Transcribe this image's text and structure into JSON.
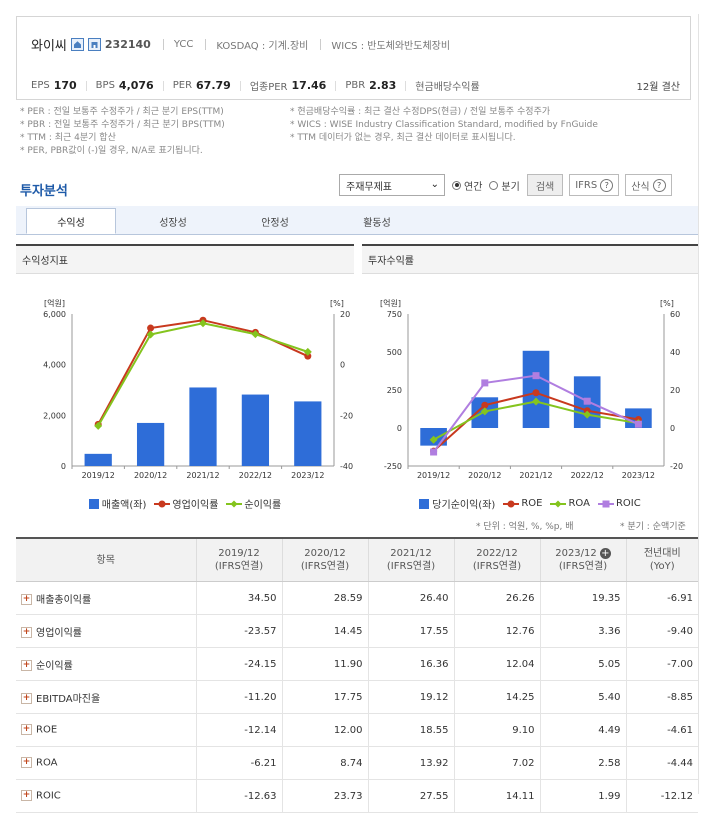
{
  "company": {
    "name": "와이씨",
    "code": "232140",
    "eng_name": "YCC",
    "market": "KOSDAQ : 기계.장비",
    "wics": "WICS : 반도체와반도체장비"
  },
  "metrics": [
    {
      "key": "EPS",
      "value": "170"
    },
    {
      "key": "BPS",
      "value": "4,076"
    },
    {
      "key": "PER",
      "value": "67.79"
    },
    {
      "key": "업종PER",
      "value": "17.46"
    },
    {
      "key": "PBR",
      "value": "2.83"
    },
    {
      "key": "현금배당수익률",
      "value": ""
    }
  ],
  "settlement": "12월 결산",
  "notes": {
    "left": [
      "* PER : 전일 보통주 수정주가 / 최근 분기 EPS(TTM)",
      "* PBR : 전일 보통주 수정주가 / 최근 분기 BPS(TTM)",
      "* TTM : 최근 4분기 합산",
      "* PER, PBR값이 (-)일 경우, N/A로 표기됩니다."
    ],
    "right": [
      "* 현금배당수익률 : 최근 결산 수정DPS(현금) / 전일 보통주 수정주가",
      "* WICS : WISE Industry Classification Standard, modified by FnGuide",
      "* TTM 데이터가 없는 경우, 최근 결산 데이터로 표시됩니다."
    ]
  },
  "section_title": "투자분석",
  "controls": {
    "select_value": "주재무제표",
    "radio_annual": "연간",
    "radio_quarter": "분기",
    "search_button": "검색",
    "ifrs_button": "IFRS",
    "formula_button": "산식"
  },
  "tabs": [
    "수익성",
    "성장성",
    "안정성",
    "활동성"
  ],
  "panels": {
    "left_title": "수익성지표",
    "right_title": "투자수익률"
  },
  "colors": {
    "bar": "#2e6dd8",
    "op_margin": "#c8391e",
    "net_margin": "#84c41e",
    "roic": "#b07ee0",
    "negative": "#d61f1f",
    "accent_title": "#1e5aa8"
  },
  "chart_data": [
    {
      "type": "bar",
      "categories": [
        "2019/12",
        "2020/12",
        "2021/12",
        "2022/12",
        "2023/12"
      ],
      "y_left_unit": "[억원]",
      "y_right_unit": "[%]",
      "ylim_left": [
        0,
        6000
      ],
      "yticks_left": [
        "0",
        "2,000",
        "4,000",
        "6,000"
      ],
      "ylim_right": [
        -40,
        20
      ],
      "yticks_right": [
        "-40",
        "-20",
        "0",
        "20"
      ],
      "series": [
        {
          "name": "매출액(좌)",
          "type": "bar",
          "axis": "left",
          "values": [
            480,
            1700,
            3100,
            2820,
            2550
          ]
        },
        {
          "name": "영업이익률",
          "type": "line",
          "axis": "right",
          "values": [
            -23.57,
            14.45,
            17.55,
            12.76,
            3.36
          ]
        },
        {
          "name": "순이익률",
          "type": "line",
          "axis": "right",
          "values": [
            -24.15,
            11.9,
            16.36,
            12.04,
            5.05
          ]
        }
      ]
    },
    {
      "type": "bar",
      "categories": [
        "2019/12",
        "2020/12",
        "2021/12",
        "2022/12",
        "2023/12"
      ],
      "y_left_unit": "[억원]",
      "y_right_unit": "[%]",
      "ylim_left": [
        -250,
        750
      ],
      "yticks_left": [
        "-250",
        "0",
        "250",
        "500",
        "750"
      ],
      "ylim_right": [
        -20,
        60
      ],
      "yticks_right": [
        "-20",
        "0",
        "20",
        "40",
        "60"
      ],
      "series": [
        {
          "name": "당기순이익(좌)",
          "type": "bar",
          "axis": "left",
          "values": [
            -116,
            202,
            508,
            340,
            129
          ]
        },
        {
          "name": "ROE",
          "type": "line",
          "axis": "right",
          "values": [
            -12.14,
            12.0,
            18.55,
            9.1,
            4.49
          ]
        },
        {
          "name": "ROA",
          "type": "line",
          "axis": "right",
          "values": [
            -6.21,
            8.74,
            13.92,
            7.02,
            2.58
          ]
        },
        {
          "name": "ROIC",
          "type": "line",
          "axis": "right",
          "values": [
            -12.63,
            23.73,
            27.55,
            14.11,
            1.99
          ]
        }
      ]
    },
    {
      "type": "table",
      "unit_note": "* 단위 : 억원, %, %p, 배",
      "quarter_note": "* 분기 : 순액기준",
      "header_item": "항목",
      "columns": [
        {
          "year": "2019/12",
          "sub": "(IFRS연결)"
        },
        {
          "year": "2020/12",
          "sub": "(IFRS연결)"
        },
        {
          "year": "2021/12",
          "sub": "(IFRS연결)"
        },
        {
          "year": "2022/12",
          "sub": "(IFRS연결)"
        },
        {
          "year": "2023/12",
          "sub": "(IFRS연결)"
        },
        {
          "year": "전년대비",
          "sub": "(YoY)"
        }
      ],
      "rows": [
        {
          "label": "매출총이익률",
          "values": [
            "34.50",
            "28.59",
            "26.40",
            "26.26",
            "19.35",
            "-6.91"
          ]
        },
        {
          "label": "영업이익률",
          "values": [
            "-23.57",
            "14.45",
            "17.55",
            "12.76",
            "3.36",
            "-9.40"
          ]
        },
        {
          "label": "순이익률",
          "values": [
            "-24.15",
            "11.90",
            "16.36",
            "12.04",
            "5.05",
            "-7.00"
          ]
        },
        {
          "label": "EBITDA마진율",
          "values": [
            "-11.20",
            "17.75",
            "19.12",
            "14.25",
            "5.40",
            "-8.85"
          ]
        },
        {
          "label": "ROE",
          "values": [
            "-12.14",
            "12.00",
            "18.55",
            "9.10",
            "4.49",
            "-4.61"
          ]
        },
        {
          "label": "ROA",
          "values": [
            "-6.21",
            "8.74",
            "13.92",
            "7.02",
            "2.58",
            "-4.44"
          ]
        },
        {
          "label": "ROIC",
          "values": [
            "-12.63",
            "23.73",
            "27.55",
            "14.11",
            "1.99",
            "-12.12"
          ]
        }
      ]
    }
  ]
}
